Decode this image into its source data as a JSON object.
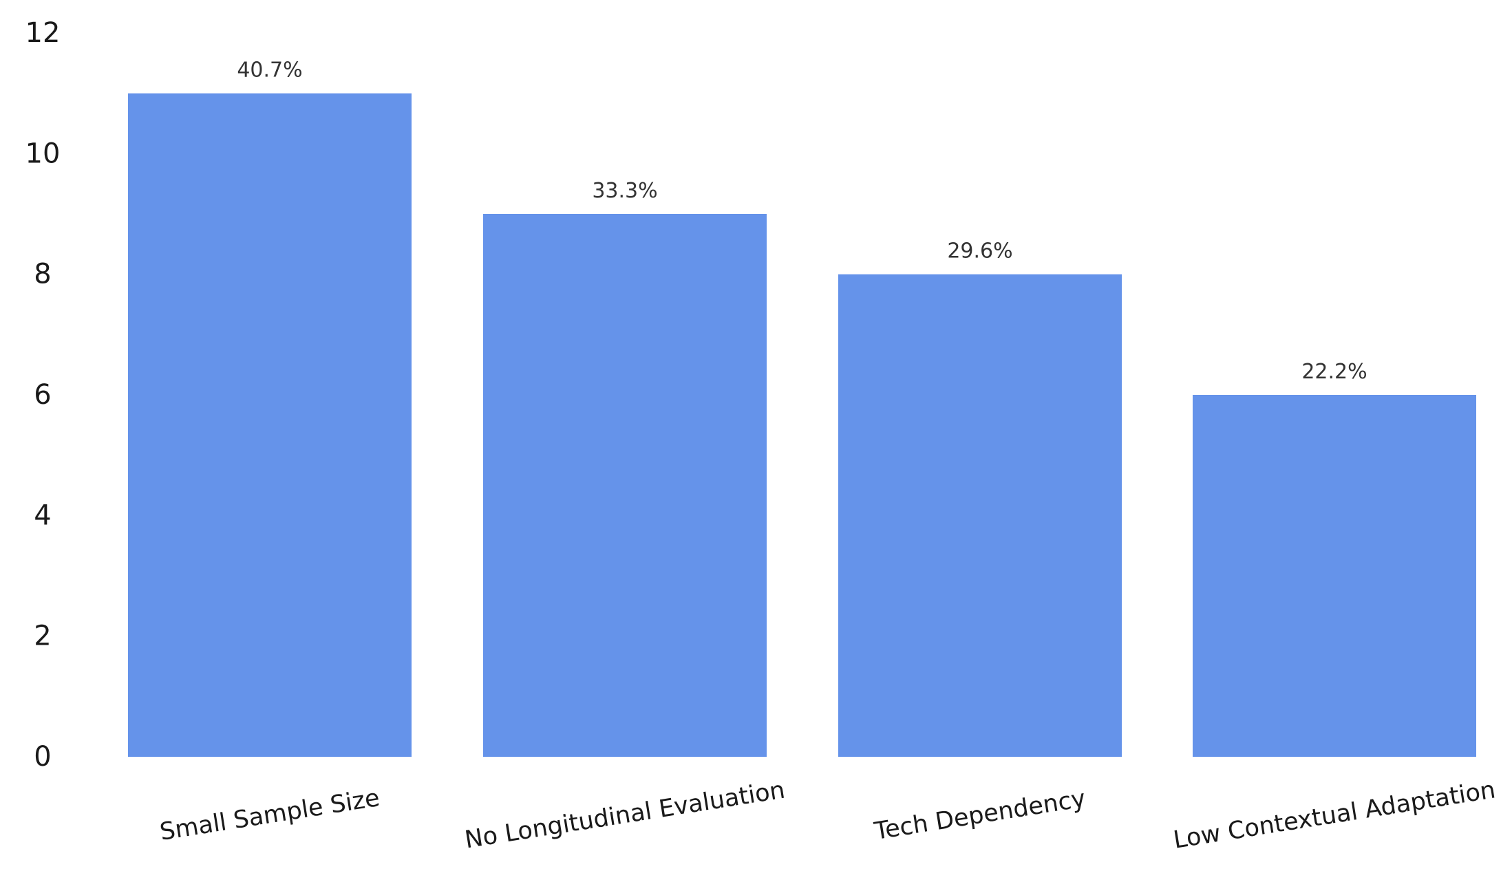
{
  "chart_data": {
    "type": "bar",
    "categories": [
      "Small Sample Size",
      "No Longitudinal Evaluation",
      "Tech Dependency",
      "Low Contextual Adaptation"
    ],
    "values": [
      11,
      9,
      8,
      6
    ],
    "data_labels": [
      "40.7%",
      "33.3%",
      "29.6%",
      "22.2%"
    ],
    "y_ticks": [
      "0",
      "2",
      "4",
      "6",
      "8",
      "10",
      "12"
    ],
    "ylim": [
      0,
      12
    ],
    "grid": false,
    "bar_color": "#6593EA"
  }
}
